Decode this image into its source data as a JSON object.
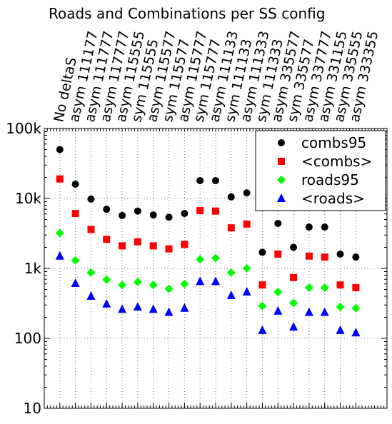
{
  "chart_data": {
    "type": "scatter",
    "title": "Roads and Combinations per SS config",
    "categories": [
      "No deltaS",
      "asym 111177",
      "asym 111777",
      "asym 117777",
      "asym 115555",
      "sym 115555",
      "asym 115577",
      "sym 115577",
      "asym 115777",
      "sym 115777",
      "asym 111133",
      "sym 111133",
      "asym 111333",
      "sym 111333",
      "asym 335577",
      "sym 335577",
      "asym 337777",
      "asym 331155",
      "asym 335555",
      "asym 333355"
    ],
    "series": [
      {
        "name": "combs95",
        "color": "#000000",
        "marker": "circle",
        "values": [
          50000,
          16000,
          9800,
          7000,
          5700,
          6600,
          5800,
          5400,
          6100,
          18000,
          18000,
          10500,
          12000,
          1700,
          4400,
          2000,
          3900,
          3900,
          1600,
          1450
        ]
      },
      {
        "name": "<combs>",
        "color": "#ff0000",
        "marker": "square",
        "values": [
          19000,
          6100,
          3600,
          2600,
          2100,
          2400,
          2100,
          1900,
          2200,
          6700,
          6600,
          3800,
          4300,
          580,
          1600,
          740,
          1500,
          1450,
          580,
          530
        ]
      },
      {
        "name": "roads95",
        "color": "#00ff00",
        "marker": "diamond",
        "values": [
          3200,
          1300,
          870,
          690,
          580,
          640,
          580,
          510,
          600,
          1350,
          1400,
          870,
          1000,
          290,
          460,
          320,
          530,
          530,
          280,
          270
        ]
      },
      {
        "name": "<roads>",
        "color": "#0000ff",
        "marker": "triangle",
        "values": [
          1500,
          610,
          400,
          310,
          260,
          280,
          260,
          235,
          270,
          650,
          650,
          410,
          460,
          130,
          245,
          145,
          235,
          235,
          130,
          120
        ]
      }
    ],
    "ylim": [
      10,
      100000
    ],
    "log_y": true,
    "yticks": [
      10,
      100,
      {
        "value": 1000,
        "label": "1k"
      },
      {
        "value": 10000,
        "label": "10k"
      },
      {
        "value": 100000,
        "label": "100k"
      }
    ],
    "grid": true,
    "legend": "upper right"
  }
}
